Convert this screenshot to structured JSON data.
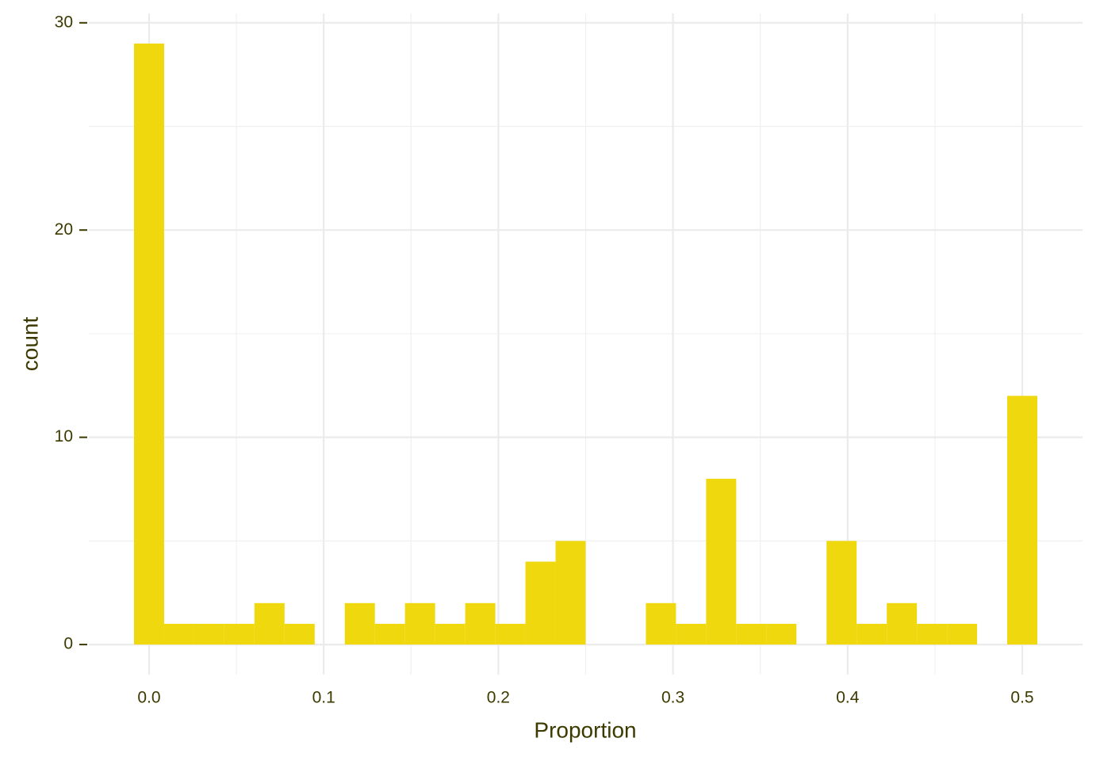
{
  "chart_data": {
    "type": "histogram",
    "x_label": "Proportion",
    "y_label": "count",
    "bins": [
      -0.00862,
      0.00862,
      0.02586,
      0.0431,
      0.06034,
      0.07759,
      0.09483,
      0.11207,
      0.12931,
      0.14655,
      0.16379,
      0.18103,
      0.19828,
      0.21552,
      0.23276,
      0.25,
      0.26724,
      0.28448,
      0.30172,
      0.31897,
      0.33621,
      0.35345,
      0.37069,
      0.38793,
      0.40517,
      0.42241,
      0.43966,
      0.4569,
      0.47414,
      0.49138,
      0.50862
    ],
    "counts": [
      29,
      1,
      1,
      1,
      2,
      1,
      0,
      2,
      1,
      2,
      1,
      2,
      1,
      4,
      5,
      0,
      0,
      2,
      1,
      8,
      1,
      1,
      0,
      5,
      1,
      2,
      1,
      1,
      0,
      12
    ],
    "color": "#f0d80f",
    "xlim": [
      -0.0345,
      0.5345
    ],
    "ylim": [
      -1.45,
      30.45
    ],
    "xticks": [
      {
        "value": 0,
        "label": "0.0"
      },
      0.1,
      0.2,
      0.3,
      0.4,
      0.5
    ],
    "yticks": [
      0,
      10,
      20,
      30
    ],
    "x_minor_grid": [
      0.05,
      0.15,
      0.25,
      0.35,
      0.45
    ],
    "y_minor_grid": [
      5,
      15,
      25
    ],
    "grid": true
  }
}
